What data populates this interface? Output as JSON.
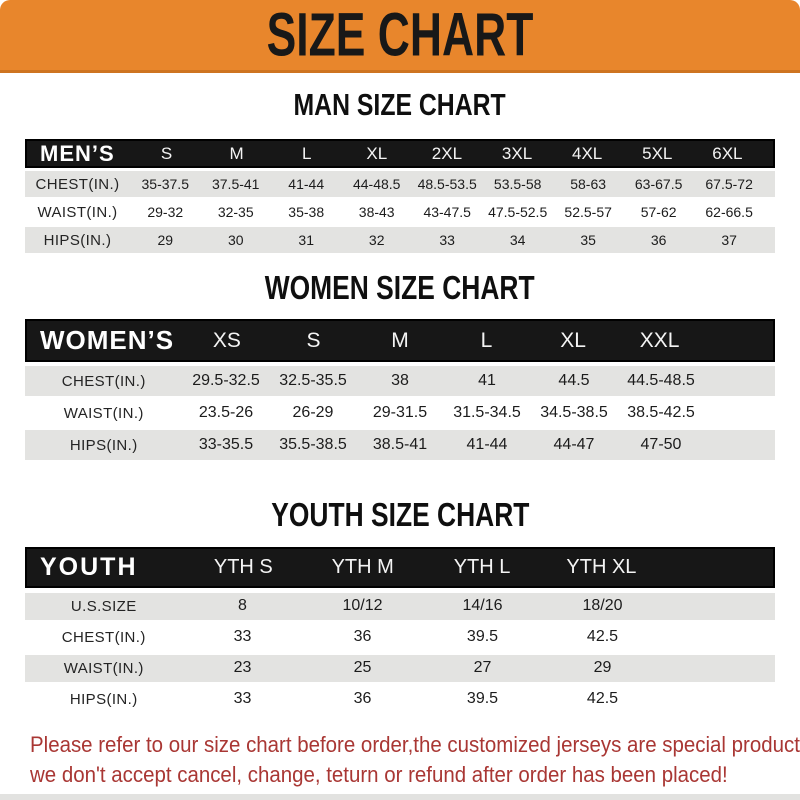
{
  "banner": {
    "title": "SIZE CHART"
  },
  "colors": {
    "banner_bg": "#E8862C",
    "banner_border": "#CE7420",
    "table_header_bg": "#171717",
    "row_shade": "#E3E3E1",
    "note_red": "#A93734"
  },
  "sections": [
    {
      "heading": "MAN SIZE CHART",
      "group_label": "MEN’S",
      "columns": [
        "S",
        "M",
        "L",
        "XL",
        "2XL",
        "3XL",
        "4XL",
        "5XL",
        "6XL"
      ],
      "rows": [
        {
          "label": "CHEST(IN.)",
          "values": [
            "35-37.5",
            "37.5-41",
            "41-44",
            "44-48.5",
            "48.5-53.5",
            "53.5-58",
            "58-63",
            "63-67.5",
            "67.5-72"
          ]
        },
        {
          "label": "WAIST(IN.)",
          "values": [
            "29-32",
            "32-35",
            "35-38",
            "38-43",
            "43-47.5",
            "47.5-52.5",
            "52.5-57",
            "57-62",
            "62-66.5"
          ]
        },
        {
          "label": "HIPS(IN.)",
          "values": [
            "29",
            "30",
            "31",
            "32",
            "33",
            "34",
            "35",
            "36",
            "37"
          ]
        }
      ]
    },
    {
      "heading": "WOMEN SIZE CHART",
      "group_label": "WOMEN’S",
      "columns": [
        "XS",
        "S",
        "M",
        "L",
        "XL",
        "XXL"
      ],
      "rows": [
        {
          "label": "CHEST(IN.)",
          "values": [
            "29.5-32.5",
            "32.5-35.5",
            "38",
            "41",
            "44.5",
            "44.5-48.5"
          ]
        },
        {
          "label": "WAIST(IN.)",
          "values": [
            "23.5-26",
            "26-29",
            "29-31.5",
            "31.5-34.5",
            "34.5-38.5",
            "38.5-42.5"
          ]
        },
        {
          "label": "HIPS(IN.)",
          "values": [
            "33-35.5",
            "35.5-38.5",
            "38.5-41",
            "41-44",
            "44-47",
            "47-50"
          ]
        }
      ]
    },
    {
      "heading": "YOUTH SIZE CHART",
      "group_label": "YOUTH",
      "columns": [
        "YTH S",
        "YTH M",
        "YTH L",
        "YTH XL"
      ],
      "rows": [
        {
          "label": "U.S.SIZE",
          "values": [
            "8",
            "10/12",
            "14/16",
            "18/20"
          ]
        },
        {
          "label": "CHEST(IN.)",
          "values": [
            "33",
            "36",
            "39.5",
            "42.5"
          ]
        },
        {
          "label": "WAIST(IN.)",
          "values": [
            "23",
            "25",
            "27",
            "29"
          ]
        },
        {
          "label": "HIPS(IN.)",
          "values": [
            "33",
            "36",
            "39.5",
            "42.5"
          ]
        }
      ]
    }
  ],
  "footer": {
    "line1": "Please refer to our size chart before order,the customized jerseys are special products,",
    "line2": "we don't accept cancel, change, teturn or refund after order has been placed!"
  },
  "chart_data": [
    {
      "type": "table",
      "title": "MAN SIZE CHART",
      "columns": [
        "MEN’S",
        "S",
        "M",
        "L",
        "XL",
        "2XL",
        "3XL",
        "4XL",
        "5XL",
        "6XL"
      ],
      "rows": [
        [
          "CHEST(IN.)",
          "35-37.5",
          "37.5-41",
          "41-44",
          "44-48.5",
          "48.5-53.5",
          "53.5-58",
          "58-63",
          "63-67.5",
          "67.5-72"
        ],
        [
          "WAIST(IN.)",
          "29-32",
          "32-35",
          "35-38",
          "38-43",
          "43-47.5",
          "47.5-52.5",
          "52.5-57",
          "57-62",
          "62-66.5"
        ],
        [
          "HIPS(IN.)",
          "29",
          "30",
          "31",
          "32",
          "33",
          "34",
          "35",
          "36",
          "37"
        ]
      ]
    },
    {
      "type": "table",
      "title": "WOMEN SIZE CHART",
      "columns": [
        "WOMEN’S",
        "XS",
        "S",
        "M",
        "L",
        "XL",
        "XXL"
      ],
      "rows": [
        [
          "CHEST(IN.)",
          "29.5-32.5",
          "32.5-35.5",
          "38",
          "41",
          "44.5",
          "44.5-48.5"
        ],
        [
          "WAIST(IN.)",
          "23.5-26",
          "26-29",
          "29-31.5",
          "31.5-34.5",
          "34.5-38.5",
          "38.5-42.5"
        ],
        [
          "HIPS(IN.)",
          "33-35.5",
          "35.5-38.5",
          "38.5-41",
          "41-44",
          "44-47",
          "47-50"
        ]
      ]
    },
    {
      "type": "table",
      "title": "YOUTH SIZE CHART",
      "columns": [
        "YOUTH",
        "YTH S",
        "YTH M",
        "YTH L",
        "YTH XL"
      ],
      "rows": [
        [
          "U.S.SIZE",
          "8",
          "10/12",
          "14/16",
          "18/20"
        ],
        [
          "CHEST(IN.)",
          "33",
          "36",
          "39.5",
          "42.5"
        ],
        [
          "WAIST(IN.)",
          "23",
          "25",
          "27",
          "29"
        ],
        [
          "HIPS(IN.)",
          "33",
          "36",
          "39.5",
          "42.5"
        ]
      ]
    }
  ]
}
